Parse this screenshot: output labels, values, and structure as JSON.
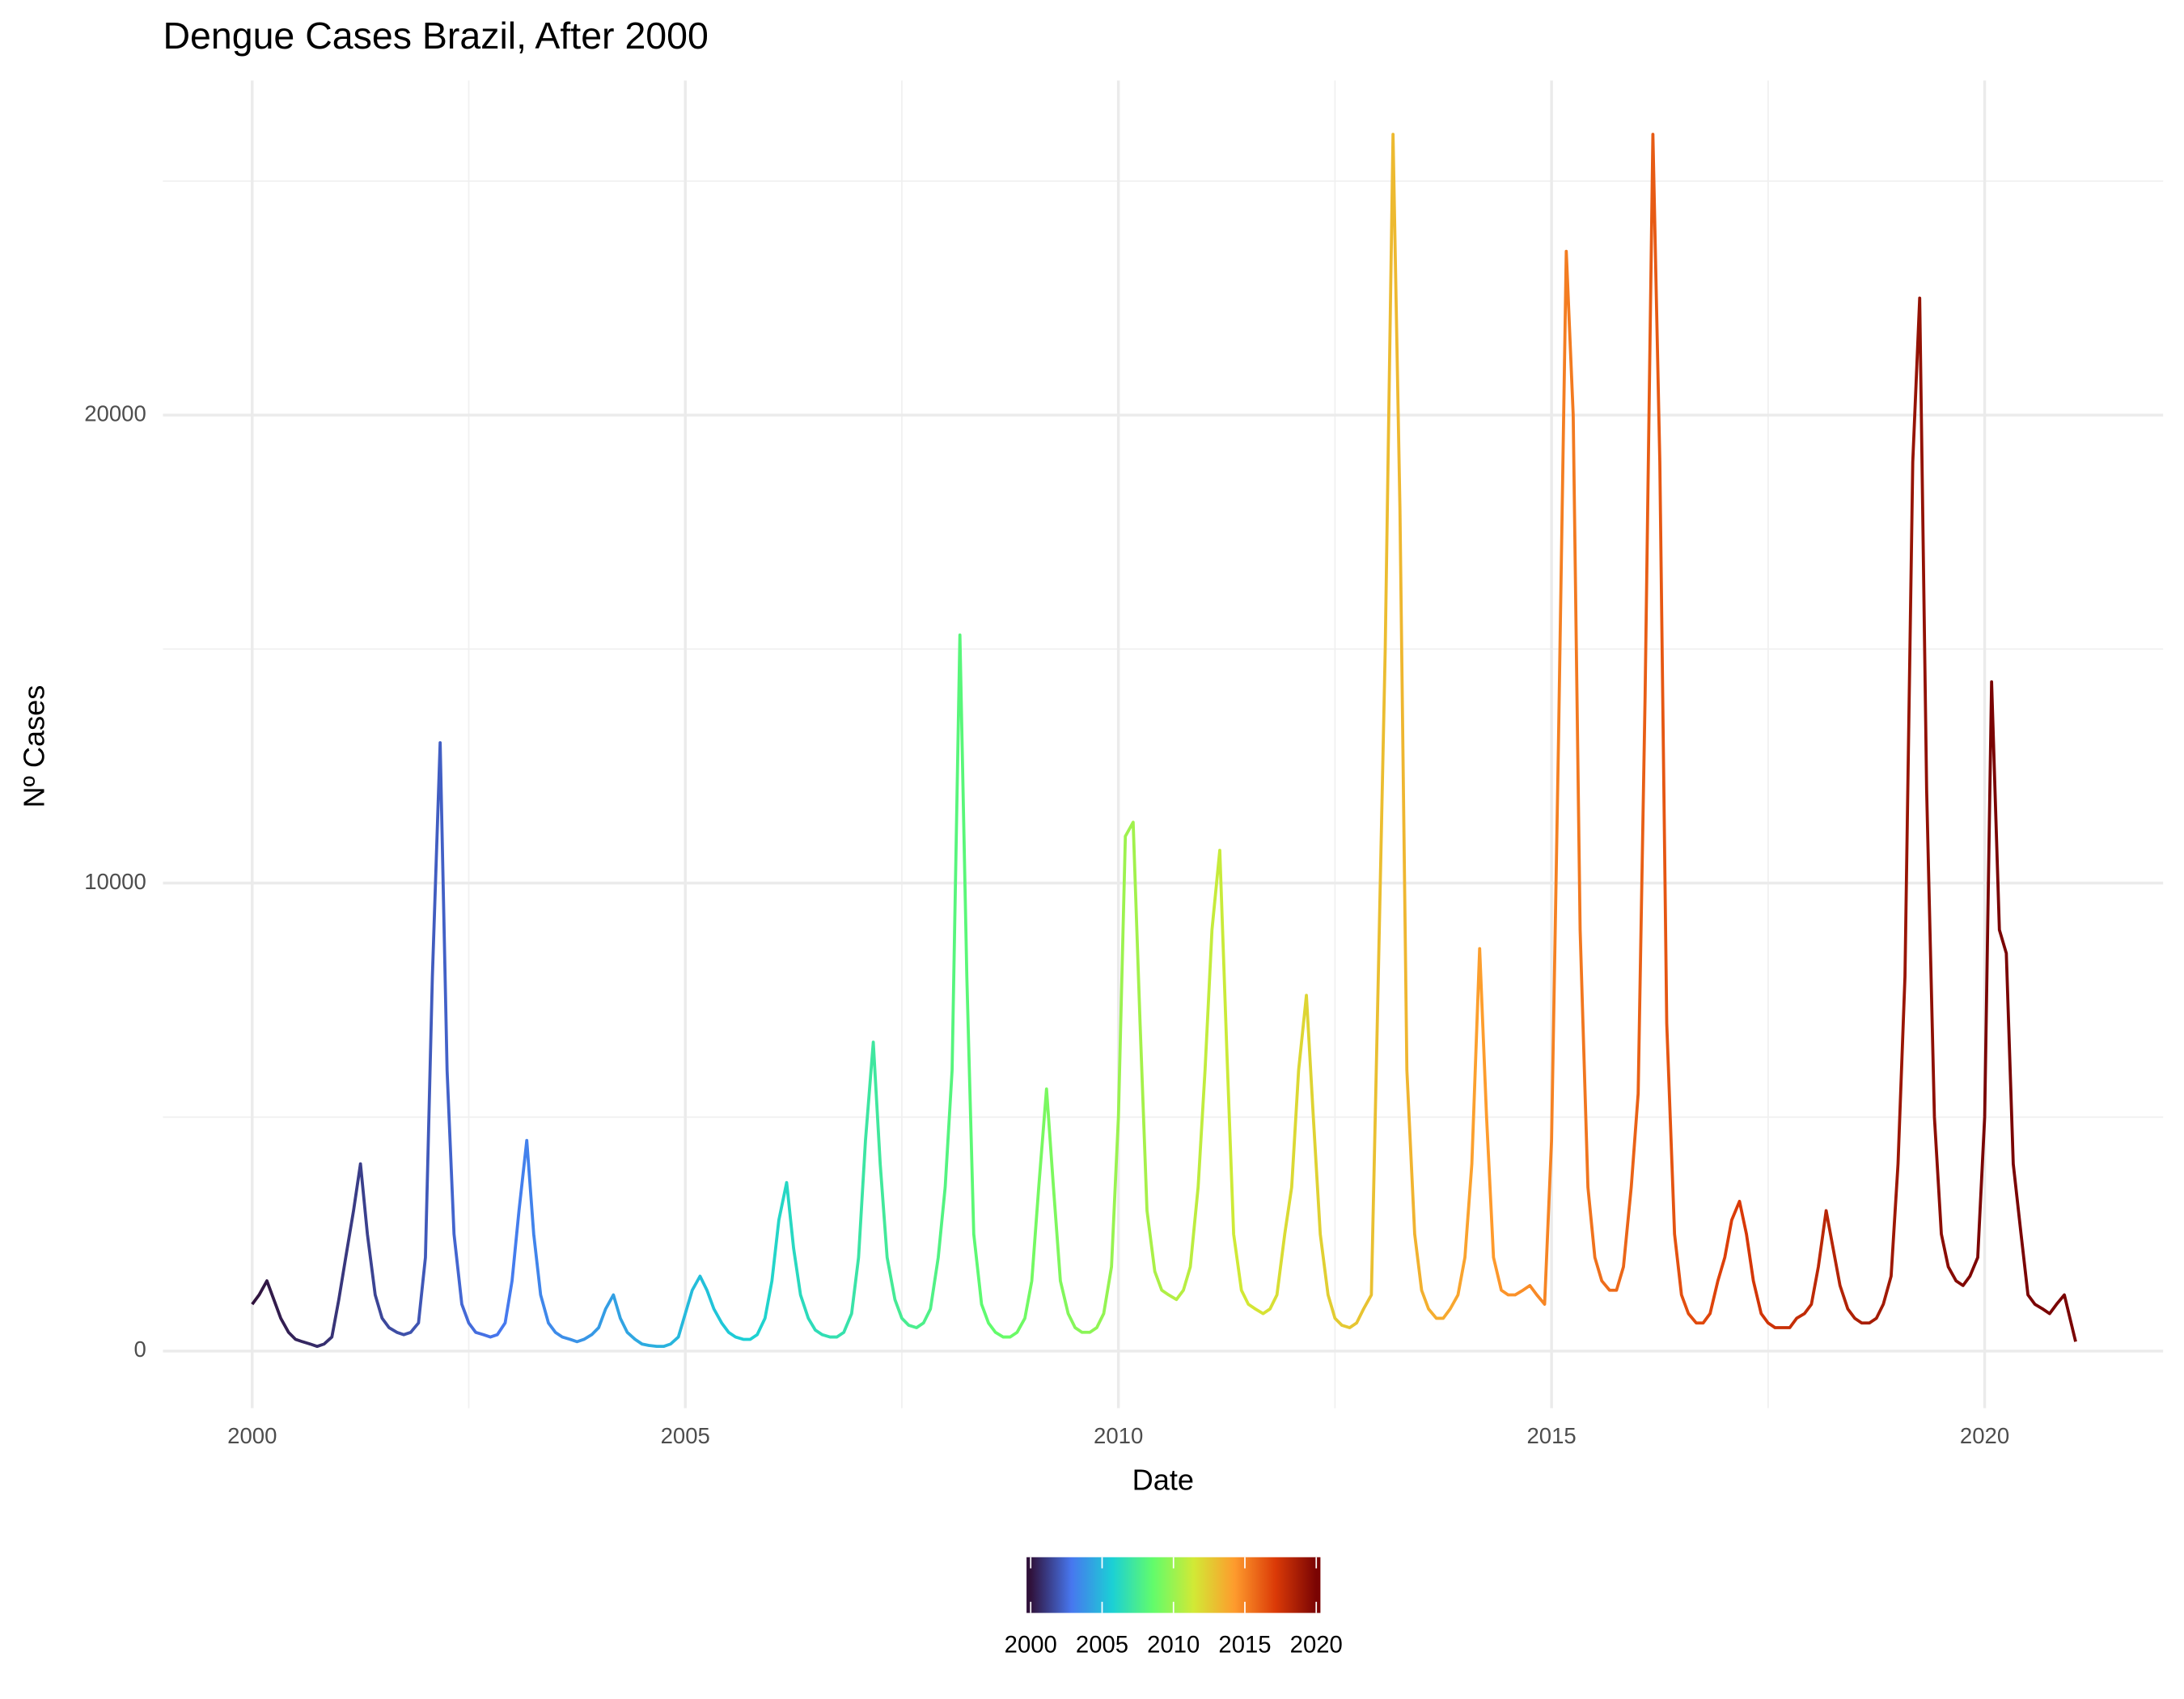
{
  "chart_data": {
    "type": "line",
    "title": "Dengue Cases Brazil, After 2000",
    "x_label": "Date",
    "y_label": "Nº Cases",
    "x": [
      2000,
      2000.08,
      2000.17,
      2000.25,
      2000.33,
      2000.42,
      2000.5,
      2000.58,
      2000.67,
      2000.75,
      2000.83,
      2000.92,
      2001,
      2001.08,
      2001.17,
      2001.25,
      2001.33,
      2001.42,
      2001.5,
      2001.58,
      2001.67,
      2001.75,
      2001.83,
      2001.92,
      2002,
      2002.08,
      2002.17,
      2002.25,
      2002.33,
      2002.42,
      2002.5,
      2002.58,
      2002.67,
      2002.75,
      2002.83,
      2002.92,
      2003,
      2003.08,
      2003.17,
      2003.25,
      2003.33,
      2003.42,
      2003.5,
      2003.58,
      2003.67,
      2003.75,
      2003.83,
      2003.92,
      2004,
      2004.08,
      2004.17,
      2004.25,
      2004.33,
      2004.42,
      2004.5,
      2004.58,
      2004.67,
      2004.75,
      2004.83,
      2004.92,
      2005,
      2005.08,
      2005.17,
      2005.25,
      2005.33,
      2005.42,
      2005.5,
      2005.58,
      2005.67,
      2005.75,
      2005.83,
      2005.92,
      2006,
      2006.08,
      2006.17,
      2006.25,
      2006.33,
      2006.42,
      2006.5,
      2006.58,
      2006.67,
      2006.75,
      2006.83,
      2006.92,
      2007,
      2007.08,
      2007.17,
      2007.25,
      2007.33,
      2007.42,
      2007.5,
      2007.58,
      2007.67,
      2007.75,
      2007.83,
      2007.92,
      2008,
      2008.08,
      2008.17,
      2008.25,
      2008.33,
      2008.42,
      2008.5,
      2008.58,
      2008.67,
      2008.75,
      2008.83,
      2008.92,
      2009,
      2009.08,
      2009.17,
      2009.25,
      2009.33,
      2009.42,
      2009.5,
      2009.58,
      2009.67,
      2009.75,
      2009.83,
      2009.92,
      2010,
      2010.08,
      2010.17,
      2010.25,
      2010.33,
      2010.42,
      2010.5,
      2010.58,
      2010.67,
      2010.75,
      2010.83,
      2010.92,
      2011,
      2011.08,
      2011.17,
      2011.25,
      2011.33,
      2011.42,
      2011.5,
      2011.58,
      2011.67,
      2011.75,
      2011.83,
      2011.92,
      2012,
      2012.08,
      2012.17,
      2012.25,
      2012.33,
      2012.42,
      2012.5,
      2012.58,
      2012.67,
      2012.75,
      2012.83,
      2012.92,
      2013,
      2013.08,
      2013.17,
      2013.25,
      2013.33,
      2013.42,
      2013.5,
      2013.58,
      2013.67,
      2013.75,
      2013.83,
      2013.92,
      2014,
      2014.08,
      2014.17,
      2014.25,
      2014.33,
      2014.42,
      2014.5,
      2014.58,
      2014.67,
      2014.75,
      2014.83,
      2014.92,
      2015,
      2015.08,
      2015.17,
      2015.25,
      2015.33,
      2015.42,
      2015.5,
      2015.58,
      2015.67,
      2015.75,
      2015.83,
      2015.92,
      2016,
      2016.08,
      2016.17,
      2016.25,
      2016.33,
      2016.42,
      2016.5,
      2016.58,
      2016.67,
      2016.75,
      2016.83,
      2016.92,
      2017,
      2017.08,
      2017.17,
      2017.25,
      2017.33,
      2017.42,
      2017.5,
      2017.58,
      2017.67,
      2017.75,
      2017.83,
      2017.92,
      2018,
      2018.08,
      2018.17,
      2018.25,
      2018.33,
      2018.42,
      2018.5,
      2018.58,
      2018.67,
      2018.75,
      2018.83,
      2018.92,
      2019,
      2019.08,
      2019.17,
      2019.25,
      2019.33,
      2019.42,
      2019.5,
      2019.58,
      2019.67,
      2019.75,
      2019.83,
      2019.92,
      2020,
      2020.08,
      2020.17,
      2020.25,
      2020.33,
      2020.42,
      2020.5,
      2020.58,
      2020.67,
      2020.75,
      2020.83,
      2020.92,
      2021.05
    ],
    "series": [
      {
        "values": [
          1000,
          1200,
          1500,
          1100,
          700,
          400,
          250,
          200,
          150,
          100,
          150,
          300,
          1100,
          2000,
          3000,
          4000,
          2500,
          1200,
          700,
          500,
          400,
          350,
          400,
          600,
          2000,
          8000,
          13000,
          6000,
          2500,
          1000,
          600,
          400,
          350,
          300,
          350,
          600,
          1500,
          3000,
          4500,
          2500,
          1200,
          600,
          400,
          300,
          250,
          200,
          250,
          350,
          500,
          900,
          1200,
          700,
          400,
          250,
          150,
          120,
          100,
          100,
          150,
          300,
          800,
          1300,
          1600,
          1300,
          900,
          600,
          400,
          300,
          250,
          250,
          350,
          700,
          1500,
          2800,
          3600,
          2200,
          1200,
          700,
          450,
          350,
          300,
          300,
          400,
          800,
          2000,
          4500,
          6600,
          4000,
          2000,
          1100,
          700,
          550,
          500,
          600,
          900,
          2000,
          3500,
          6000,
          15300,
          8000,
          2500,
          1000,
          600,
          400,
          300,
          300,
          400,
          700,
          1500,
          3500,
          5600,
          3500,
          1500,
          800,
          500,
          400,
          400,
          500,
          800,
          1800,
          5000,
          11000,
          11300,
          7000,
          3000,
          1700,
          1300,
          1200,
          1100,
          1300,
          1800,
          3500,
          6000,
          9000,
          10700,
          6500,
          2500,
          1300,
          1000,
          900,
          800,
          900,
          1200,
          2500,
          3500,
          6000,
          7600,
          5000,
          2500,
          1200,
          700,
          550,
          500,
          600,
          900,
          1200,
          8000,
          15000,
          26000,
          18000,
          6000,
          2500,
          1300,
          900,
          700,
          700,
          900,
          1200,
          2000,
          4000,
          8600,
          5000,
          2000,
          1300,
          1200,
          1200,
          1300,
          1400,
          1200,
          1000,
          4500,
          13000,
          23500,
          20000,
          9000,
          3500,
          2000,
          1500,
          1300,
          1300,
          1800,
          3500,
          5500,
          14000,
          26000,
          19000,
          7000,
          2500,
          1200,
          800,
          600,
          600,
          800,
          1500,
          2000,
          2800,
          3200,
          2500,
          1500,
          800,
          600,
          500,
          500,
          500,
          700,
          800,
          1000,
          1800,
          3000,
          2200,
          1400,
          900,
          700,
          600,
          600,
          700,
          1000,
          1600,
          4000,
          8000,
          19000,
          22500,
          12000,
          5000,
          2500,
          1800,
          1500,
          1400,
          1600,
          2000,
          5000,
          14300,
          9000,
          8500,
          4000,
          2500,
          1200,
          1000,
          900,
          800,
          1000,
          1200,
          200
        ],
        "colors": [
          "#30123b",
          "#4777ef",
          "#1bd0d5",
          "#62fc6b",
          "#d2e935",
          "#fe9b2d",
          "#db3a07",
          "#7a0403"
        ]
      }
    ],
    "color_lim": [
      2000,
      2020
    ],
    "legend_ticks": [
      2000,
      2005,
      2010,
      2015,
      2020
    ],
    "xlim": [
      1998.97,
      2022.06
    ],
    "xticks": [
      2000,
      2005,
      2010,
      2015,
      2020
    ],
    "minor_xticks": [
      2002.5,
      2007.5,
      2012.5,
      2017.5
    ],
    "ylim": [
      -1220,
      27150
    ],
    "yticks": [
      0,
      10000,
      20000
    ],
    "minor_yticks": [
      5000,
      15000,
      25000
    ],
    "grid": true
  }
}
